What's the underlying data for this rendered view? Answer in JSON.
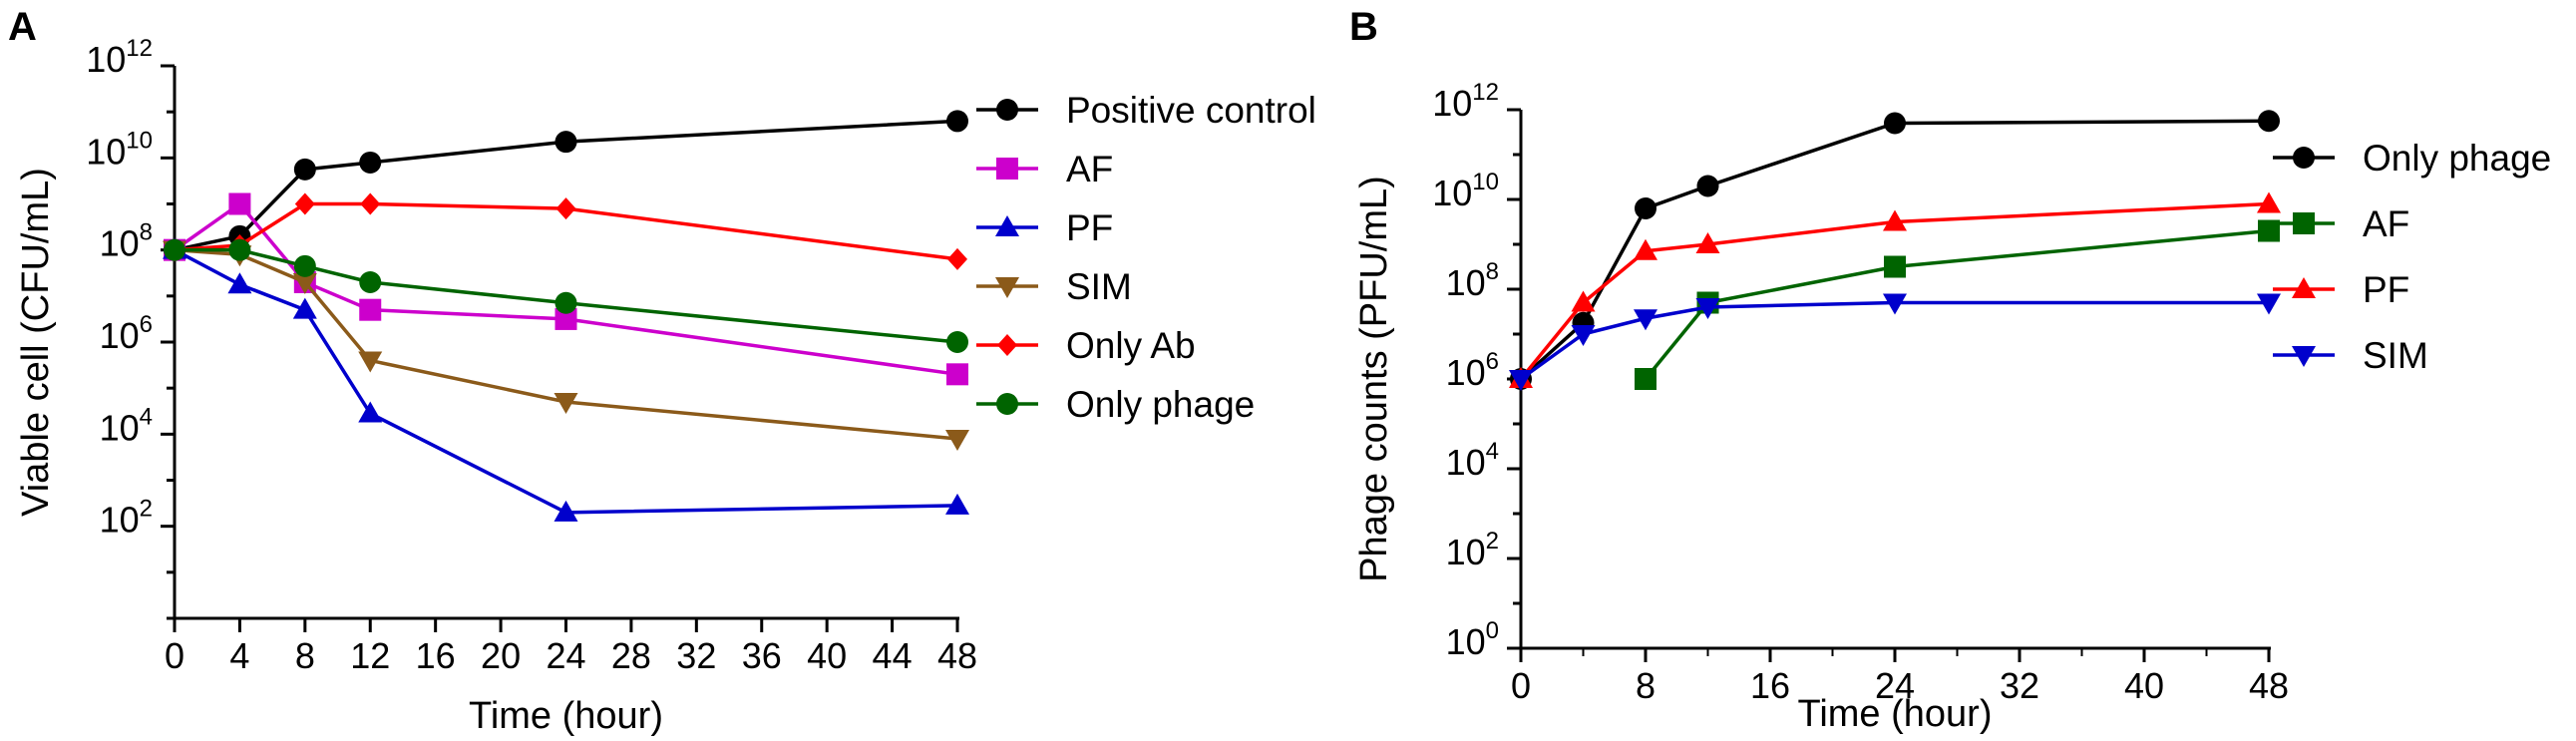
{
  "chart_data": [
    {
      "panel": "A",
      "type": "line",
      "xlabel": "Time (hour)",
      "ylabel": "Viable cell (CFU/mL)",
      "yscale": "log",
      "xlim": [
        0,
        48
      ],
      "ylim_exponent": [
        0,
        12
      ],
      "x_ticks": [
        0,
        4,
        8,
        12,
        16,
        20,
        24,
        28,
        32,
        36,
        40,
        44,
        48
      ],
      "y_tick_base": "10",
      "y_tick_exponents": [
        2,
        4,
        6,
        8,
        10,
        12
      ],
      "legend_position": "right",
      "series": [
        {
          "name": "Positive control",
          "color": "#000000",
          "marker": "circle",
          "x": [
            0,
            4,
            8,
            12,
            24,
            48
          ],
          "log10_y": [
            8,
            8.3,
            9.75,
            9.9,
            10.35,
            10.8
          ]
        },
        {
          "name": "AF",
          "color": "#cc00cc",
          "marker": "square",
          "x": [
            0,
            4,
            8,
            12,
            24,
            48
          ],
          "log10_y": [
            8,
            9,
            7.3,
            6.7,
            6.5,
            5.3
          ]
        },
        {
          "name": "PF",
          "color": "#0000cc",
          "marker": "triangle-up",
          "x": [
            0,
            4,
            8,
            12,
            24,
            48
          ],
          "log10_y": [
            8,
            7.25,
            6.7,
            4.45,
            2.3,
            2.45
          ]
        },
        {
          "name": "SIM",
          "color": "#8b5a1a",
          "marker": "triangle-down",
          "x": [
            0,
            4,
            8,
            12,
            24,
            48
          ],
          "log10_y": [
            8,
            7.9,
            7.3,
            5.6,
            4.7,
            3.9
          ]
        },
        {
          "name": "Only Ab",
          "color": "#ff0000",
          "marker": "diamond",
          "x": [
            0,
            4,
            8,
            12,
            24,
            48
          ],
          "log10_y": [
            8,
            8.1,
            9,
            9,
            8.9,
            7.8
          ]
        },
        {
          "name": "Only phage",
          "color": "#006400",
          "marker": "circle",
          "x": [
            0,
            4,
            8,
            12,
            24,
            48
          ],
          "log10_y": [
            8,
            8,
            7.65,
            7.3,
            6.85,
            6
          ]
        }
      ]
    },
    {
      "panel": "B",
      "type": "line",
      "xlabel": "Time (hour)",
      "ylabel": "Phage counts (PFU/mL)",
      "yscale": "log",
      "xlim": [
        0,
        48
      ],
      "ylim_exponent": [
        0,
        12
      ],
      "x_ticks": [
        0,
        8,
        16,
        24,
        32,
        40,
        48
      ],
      "y_tick_base": "10",
      "y_tick_exponents": [
        0,
        2,
        4,
        6,
        8,
        10,
        12
      ],
      "legend_position": "right",
      "series": [
        {
          "name": "Only phage",
          "color": "#000000",
          "marker": "circle",
          "x": [
            0,
            4,
            8,
            12,
            24,
            48
          ],
          "log10_y": [
            6,
            7.25,
            9.8,
            10.3,
            11.7,
            11.75
          ]
        },
        {
          "name": "AF",
          "color": "#006400",
          "marker": "square",
          "x": [
            8,
            12,
            24,
            48
          ],
          "log10_y": [
            6,
            7.7,
            8.5,
            9.3
          ]
        },
        {
          "name": "PF",
          "color": "#ff0000",
          "marker": "triangle-up",
          "x": [
            0,
            4,
            8,
            12,
            24,
            48
          ],
          "log10_y": [
            6,
            7.7,
            8.85,
            9,
            9.5,
            9.9
          ]
        },
        {
          "name": "SIM",
          "color": "#0000cc",
          "marker": "triangle-down",
          "x": [
            0,
            4,
            8,
            12,
            24,
            48
          ],
          "log10_y": [
            6,
            7,
            7.35,
            7.6,
            7.7,
            7.7
          ]
        }
      ]
    }
  ]
}
